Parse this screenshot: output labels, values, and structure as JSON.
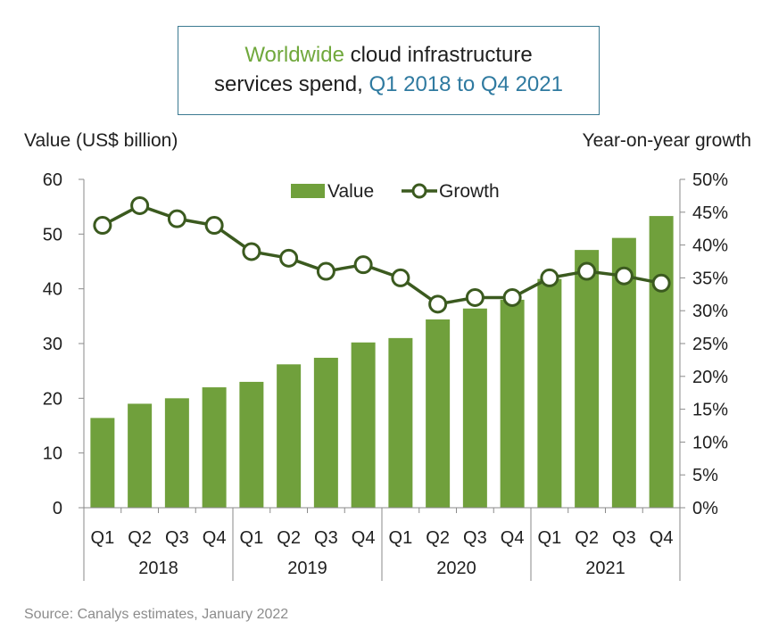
{
  "title": {
    "line1_part1": "Worldwide",
    "line1_part2": "cloud infrastructure",
    "line2_part1": "services spend,",
    "line2_part2": "Q1 2018 to Q4 2021"
  },
  "left_axis_title": "Value (US$ billion)",
  "right_axis_title": "Year-on-year growth",
  "source": "Source: Canalys estimates, January 2022",
  "colors": {
    "bar": "#70a03c",
    "line": "#3b5a1f",
    "title_green": "#70a83c",
    "title_blue": "#2f7aa0",
    "title_border": "#3c7a91"
  },
  "chart_data": {
    "type": "bar+line",
    "categories": [
      "Q1",
      "Q2",
      "Q3",
      "Q4",
      "Q1",
      "Q2",
      "Q3",
      "Q4",
      "Q1",
      "Q2",
      "Q3",
      "Q4",
      "Q1",
      "Q2",
      "Q3",
      "Q4"
    ],
    "years": [
      "2018",
      "2019",
      "2020",
      "2021"
    ],
    "series": [
      {
        "name": "Value",
        "type": "bar",
        "axis": "left",
        "values": [
          16.4,
          19.0,
          20.0,
          22.0,
          23.0,
          26.2,
          27.4,
          30.2,
          31.0,
          34.4,
          36.4,
          38.0,
          41.8,
          47.1,
          49.3,
          53.3
        ]
      },
      {
        "name": "Growth",
        "type": "line",
        "axis": "right",
        "values": [
          43,
          46,
          44,
          43,
          39,
          38,
          36,
          37,
          35,
          31,
          32,
          32,
          35,
          36,
          35.3,
          34.2
        ]
      }
    ],
    "left_axis": {
      "min": 0,
      "max": 60,
      "ticks": [
        "0",
        "10",
        "20",
        "30",
        "40",
        "50",
        "60"
      ]
    },
    "right_axis": {
      "min": 0,
      "max": 50,
      "ticks": [
        "0%",
        "5%",
        "10%",
        "15%",
        "20%",
        "25%",
        "30%",
        "35%",
        "40%",
        "45%",
        "50%"
      ]
    },
    "legend_position": "top-center",
    "grid": false
  }
}
